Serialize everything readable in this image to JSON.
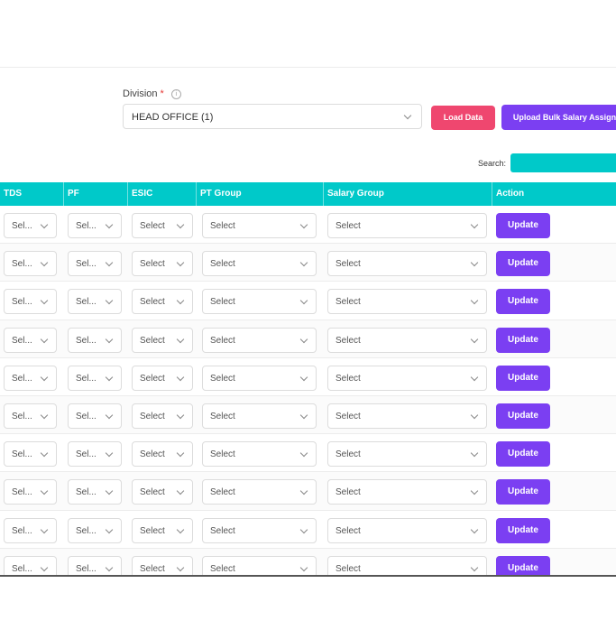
{
  "division": {
    "label": "Division",
    "required_mark": "*",
    "info_icon": "ⓘ",
    "selected": "HEAD OFFICE (1)"
  },
  "buttons": {
    "load": "Load Data",
    "bulk": "Upload Bulk Salary Assign"
  },
  "search": {
    "label": "Search:",
    "value": ""
  },
  "table": {
    "headers": [
      "TDS",
      "PF",
      "ESIC",
      "PT Group",
      "Salary Group",
      "Action"
    ],
    "rows": [
      {
        "tds": "Sel...",
        "pf": "Sel...",
        "esic": "Select",
        "pt": "Select",
        "salary": "Select",
        "action": "Update"
      },
      {
        "tds": "Sel...",
        "pf": "Sel...",
        "esic": "Select",
        "pt": "Select",
        "salary": "Select",
        "action": "Update"
      },
      {
        "tds": "Sel...",
        "pf": "Sel...",
        "esic": "Select",
        "pt": "Select",
        "salary": "Select",
        "action": "Update"
      },
      {
        "tds": "Sel...",
        "pf": "Sel...",
        "esic": "Select",
        "pt": "Select",
        "salary": "Select",
        "action": "Update"
      },
      {
        "tds": "Sel...",
        "pf": "Sel...",
        "esic": "Select",
        "pt": "Select",
        "salary": "Select",
        "action": "Update"
      },
      {
        "tds": "Sel...",
        "pf": "Sel...",
        "esic": "Select",
        "pt": "Select",
        "salary": "Select",
        "action": "Update"
      },
      {
        "tds": "Sel...",
        "pf": "Sel...",
        "esic": "Select",
        "pt": "Select",
        "salary": "Select",
        "action": "Update"
      },
      {
        "tds": "Sel...",
        "pf": "Sel...",
        "esic": "Select",
        "pt": "Select",
        "salary": "Select",
        "action": "Update"
      },
      {
        "tds": "Sel...",
        "pf": "Sel...",
        "esic": "Select",
        "pt": "Select",
        "salary": "Select",
        "action": "Update"
      },
      {
        "tds": "Sel...",
        "pf": "Sel...",
        "esic": "Select",
        "pt": "Select",
        "salary": "Select",
        "action": "Update"
      }
    ]
  },
  "colors": {
    "header_bg": "#00c9c9",
    "load_button": "#ef476f",
    "primary_button": "#7b3ff2"
  }
}
